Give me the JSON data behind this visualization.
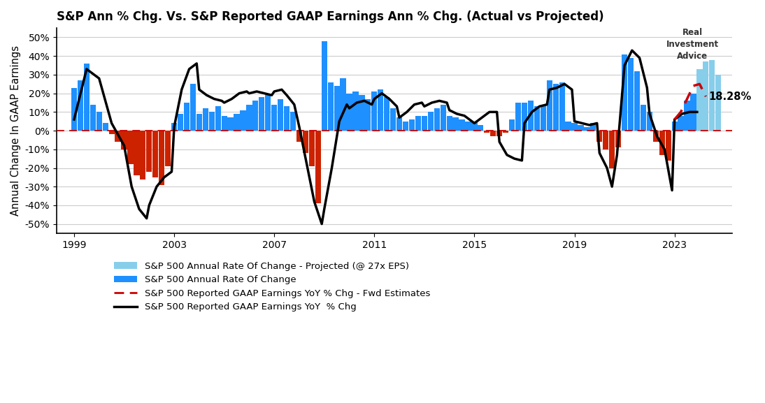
{
  "title": "S&P Ann % Chg. Vs. S&P Reported GAAP Earnings Ann % Chg. (Actual vs Projected)",
  "ylabel": "Annual Change In GAAP Earnings",
  "ylim": [
    -0.55,
    0.55
  ],
  "yticks": [
    -0.5,
    -0.4,
    -0.3,
    -0.2,
    -0.1,
    0.0,
    0.1,
    0.2,
    0.3,
    0.4,
    0.5
  ],
  "ytick_labels": [
    "-50%",
    "-40%",
    "-30%",
    "-20%",
    "-10%",
    "0%",
    "10%",
    "20%",
    "30%",
    "40%",
    "50%"
  ],
  "xtick_years": [
    1999,
    2003,
    2007,
    2011,
    2015,
    2019,
    2023
  ],
  "annotation_text": "18.28%",
  "bar_color_pos": "#1E90FF",
  "bar_color_neg": "#CC2200",
  "bar_color_projected": "#87CEEB",
  "line_color": "#000000",
  "dashed_color": "#CC0000",
  "background_color": "#FFFFFF",
  "title_fontsize": 12,
  "legend_fontsize": 9.5,
  "bars": {
    "x": [
      1999.0,
      1999.25,
      1999.5,
      1999.75,
      2000.0,
      2000.25,
      2000.5,
      2000.75,
      2001.0,
      2001.25,
      2001.5,
      2001.75,
      2002.0,
      2002.25,
      2002.5,
      2002.75,
      2003.0,
      2003.25,
      2003.5,
      2003.75,
      2004.0,
      2004.25,
      2004.5,
      2004.75,
      2005.0,
      2005.25,
      2005.5,
      2005.75,
      2006.0,
      2006.25,
      2006.5,
      2006.75,
      2007.0,
      2007.25,
      2007.5,
      2007.75,
      2008.0,
      2008.25,
      2008.5,
      2008.75,
      2009.0,
      2009.25,
      2009.5,
      2009.75,
      2010.0,
      2010.25,
      2010.5,
      2010.75,
      2011.0,
      2011.25,
      2011.5,
      2011.75,
      2012.0,
      2012.25,
      2012.5,
      2012.75,
      2013.0,
      2013.25,
      2013.5,
      2013.75,
      2014.0,
      2014.25,
      2014.5,
      2014.75,
      2015.0,
      2015.25,
      2015.5,
      2015.75,
      2016.0,
      2016.25,
      2016.5,
      2016.75,
      2017.0,
      2017.25,
      2017.5,
      2017.75,
      2018.0,
      2018.25,
      2018.5,
      2018.75,
      2019.0,
      2019.25,
      2019.5,
      2019.75,
      2020.0,
      2020.25,
      2020.5,
      2020.75,
      2021.0,
      2021.25,
      2021.5,
      2021.75,
      2022.0,
      2022.25,
      2022.5,
      2022.75,
      2023.0,
      2023.25,
      2023.5,
      2023.75,
      2024.0,
      2024.25,
      2024.5,
      2024.75
    ],
    "values": [
      0.23,
      0.27,
      0.36,
      0.14,
      0.1,
      0.04,
      -0.02,
      -0.06,
      -0.1,
      -0.18,
      -0.24,
      -0.26,
      -0.22,
      -0.25,
      -0.29,
      -0.19,
      0.04,
      0.09,
      0.15,
      0.25,
      0.09,
      0.12,
      0.1,
      0.13,
      0.08,
      0.07,
      0.09,
      0.11,
      0.14,
      0.16,
      0.18,
      0.19,
      0.14,
      0.17,
      0.13,
      0.1,
      -0.06,
      -0.12,
      -0.19,
      -0.39,
      0.48,
      0.26,
      0.24,
      0.28,
      0.2,
      0.21,
      0.19,
      0.17,
      0.21,
      0.22,
      0.18,
      0.12,
      0.07,
      0.05,
      0.06,
      0.08,
      0.08,
      0.1,
      0.12,
      0.14,
      0.08,
      0.07,
      0.06,
      0.05,
      0.05,
      0.03,
      -0.01,
      -0.03,
      -0.03,
      -0.01,
      0.06,
      0.15,
      0.15,
      0.16,
      0.13,
      0.14,
      0.27,
      0.25,
      0.26,
      0.05,
      0.04,
      0.03,
      0.02,
      0.04,
      -0.06,
      -0.1,
      -0.2,
      -0.09,
      0.41,
      0.39,
      0.32,
      0.14,
      0.1,
      -0.06,
      -0.13,
      -0.16,
      0.05,
      0.08,
      0.16,
      0.2,
      0.33,
      0.37,
      0.38,
      0.3
    ],
    "projected": [
      false,
      false,
      false,
      false,
      false,
      false,
      false,
      false,
      false,
      false,
      false,
      false,
      false,
      false,
      false,
      false,
      false,
      false,
      false,
      false,
      false,
      false,
      false,
      false,
      false,
      false,
      false,
      false,
      false,
      false,
      false,
      false,
      false,
      false,
      false,
      false,
      false,
      false,
      false,
      false,
      false,
      false,
      false,
      false,
      false,
      false,
      false,
      false,
      false,
      false,
      false,
      false,
      false,
      false,
      false,
      false,
      false,
      false,
      false,
      false,
      false,
      false,
      false,
      false,
      false,
      false,
      false,
      false,
      false,
      false,
      false,
      false,
      false,
      false,
      false,
      false,
      false,
      false,
      false,
      false,
      false,
      false,
      false,
      false,
      false,
      false,
      false,
      false,
      false,
      false,
      false,
      false,
      false,
      false,
      false,
      false,
      false,
      false,
      false,
      false,
      true,
      true,
      true,
      true
    ]
  },
  "gaap_line": {
    "x": [
      1999.0,
      1999.5,
      2000.0,
      2000.5,
      2001.0,
      2001.3,
      2001.6,
      2001.9,
      2002.0,
      2002.3,
      2002.6,
      2002.9,
      2003.0,
      2003.3,
      2003.6,
      2003.9,
      2004.0,
      2004.3,
      2004.6,
      2004.9,
      2005.0,
      2005.3,
      2005.6,
      2005.9,
      2006.0,
      2006.3,
      2006.6,
      2006.9,
      2007.0,
      2007.3,
      2007.5,
      2007.8,
      2008.0,
      2008.3,
      2008.6,
      2008.9,
      2009.0,
      2009.3,
      2009.6,
      2009.9,
      2010.0,
      2010.3,
      2010.6,
      2010.9,
      2011.0,
      2011.3,
      2011.6,
      2011.9,
      2012.0,
      2012.3,
      2012.6,
      2012.9,
      2013.0,
      2013.3,
      2013.6,
      2013.9,
      2014.0,
      2014.3,
      2014.6,
      2014.9,
      2015.0,
      2015.3,
      2015.6,
      2015.9,
      2016.0,
      2016.3,
      2016.6,
      2016.9,
      2017.0,
      2017.3,
      2017.6,
      2017.9,
      2018.0,
      2018.3,
      2018.6,
      2018.9,
      2019.0,
      2019.3,
      2019.6,
      2019.9,
      2020.0,
      2020.3,
      2020.5,
      2020.7,
      2021.0,
      2021.3,
      2021.6,
      2021.9,
      2022.0,
      2022.3,
      2022.6,
      2022.9,
      2023.0,
      2023.3,
      2023.6,
      2023.9
    ],
    "y": [
      0.06,
      0.33,
      0.28,
      0.04,
      -0.08,
      -0.3,
      -0.42,
      -0.47,
      -0.4,
      -0.3,
      -0.25,
      -0.22,
      0.02,
      0.22,
      0.33,
      0.36,
      0.22,
      0.19,
      0.17,
      0.16,
      0.15,
      0.17,
      0.2,
      0.21,
      0.2,
      0.21,
      0.2,
      0.19,
      0.21,
      0.22,
      0.19,
      0.14,
      0.02,
      -0.18,
      -0.38,
      -0.5,
      -0.42,
      -0.2,
      0.05,
      0.14,
      0.12,
      0.15,
      0.16,
      0.14,
      0.17,
      0.2,
      0.17,
      0.13,
      0.07,
      0.1,
      0.14,
      0.15,
      0.13,
      0.15,
      0.16,
      0.15,
      0.11,
      0.09,
      0.08,
      0.05,
      0.04,
      0.07,
      0.1,
      0.1,
      -0.06,
      -0.13,
      -0.15,
      -0.16,
      0.04,
      0.1,
      0.13,
      0.14,
      0.22,
      0.23,
      0.25,
      0.22,
      0.05,
      0.04,
      0.03,
      0.04,
      -0.12,
      -0.2,
      -0.3,
      -0.13,
      0.35,
      0.43,
      0.39,
      0.23,
      0.09,
      -0.03,
      -0.1,
      -0.32,
      0.06,
      0.09,
      0.1,
      0.1
    ]
  },
  "gaap_fwd": {
    "x": [
      2023.0,
      2023.25,
      2023.5,
      2023.75,
      2024.0,
      2024.25
    ],
    "y": [
      0.06,
      0.1,
      0.17,
      0.24,
      0.25,
      0.1828
    ]
  }
}
